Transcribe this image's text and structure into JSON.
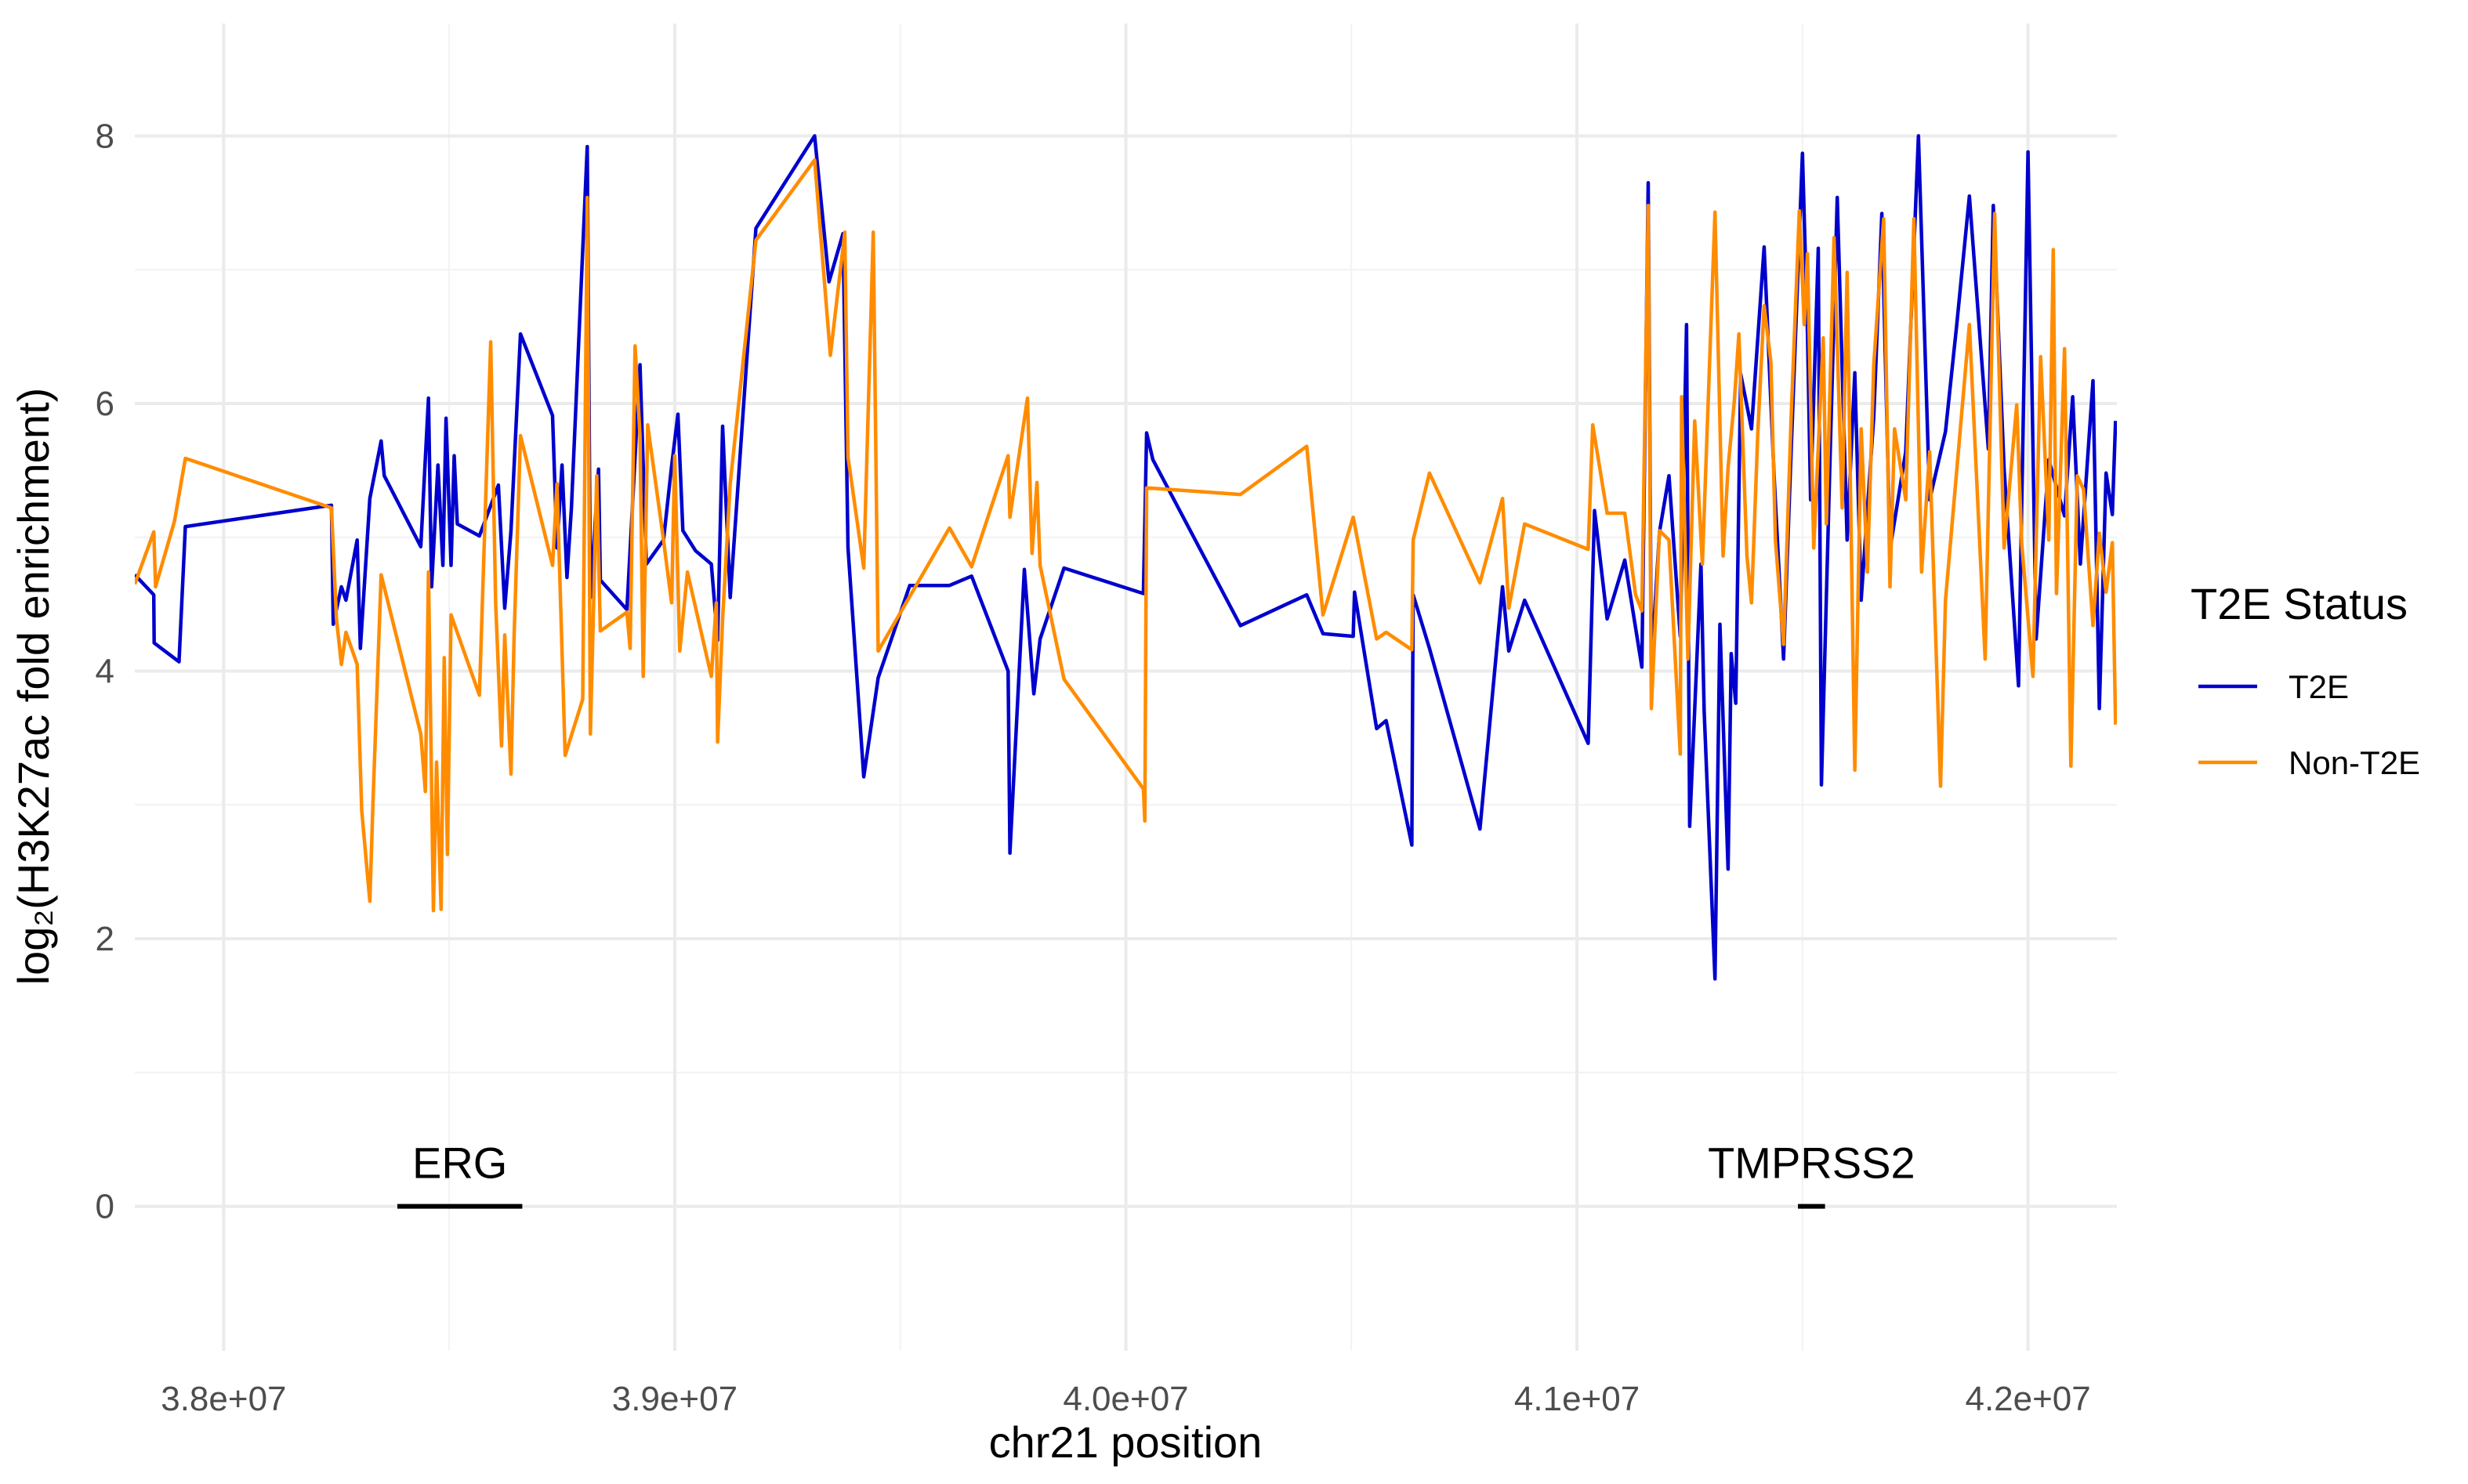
{
  "chart_data": {
    "type": "line",
    "x_label": "chr21 position",
    "y_label": "log₂(H3K27ac fold enrichment)",
    "legend_title": "T2E Status",
    "legend_position": "right",
    "grid": true,
    "xlim": [
      37803000,
      42197000
    ],
    "ylim": [
      -1.08,
      8.84
    ],
    "xticks": [
      {
        "value": 38000000,
        "label": "3.8e+07"
      },
      {
        "value": 39000000,
        "label": "3.9e+07"
      },
      {
        "value": 40000000,
        "label": "4.0e+07"
      },
      {
        "value": 41000000,
        "label": "4.1e+07"
      },
      {
        "value": 42000000,
        "label": "4.2e+07"
      }
    ],
    "yticks": [
      0,
      2,
      4,
      6,
      8
    ],
    "annotations": [
      {
        "label": "ERG",
        "start": 38385000,
        "end": 38662000,
        "y": 0
      },
      {
        "label": "TMPRSS2",
        "start": 41490000,
        "end": 41550000,
        "y": 0
      }
    ],
    "series": [
      {
        "name": "T2E",
        "color": "#0000cd",
        "x": [
          37803000,
          37845000,
          37846000,
          37901000,
          37915000,
          38239000,
          38243000,
          38261000,
          38271000,
          38296000,
          38303000,
          38324000,
          38349000,
          38356000,
          38437000,
          38454000,
          38461000,
          38475000,
          38486000,
          38493000,
          38504000,
          38511000,
          38518000,
          38567000,
          38609000,
          38623000,
          38637000,
          38658000,
          38729000,
          38739000,
          38750000,
          38761000,
          38771000,
          38806000,
          38813000,
          38831000,
          38835000,
          38894000,
          38923000,
          38937000,
          38975000,
          38993000,
          39007000,
          39018000,
          39046000,
          39081000,
          39095000,
          39106000,
          39123000,
          39180000,
          39310000,
          39342000,
          39373000,
          39384000,
          39419000,
          39451000,
          39521000,
          39609000,
          39658000,
          39739000,
          39743000,
          39775000,
          39796000,
          39810000,
          39863000,
          40039000,
          40046000,
          40060000,
          40254000,
          40401000,
          40437000,
          40504000,
          40507000,
          40556000,
          40577000,
          40634000,
          40637000,
          40673000,
          40785000,
          40835000,
          40849000,
          40884000,
          41025000,
          41039000,
          41067000,
          41106000,
          41144000,
          41158000,
          41165000,
          41183000,
          41204000,
          41229000,
          41243000,
          41250000,
          41275000,
          41282000,
          41306000,
          41317000,
          41335000,
          41342000,
          41352000,
          41363000,
          41387000,
          41415000,
          41437000,
          41458000,
          41475000,
          41500000,
          41511000,
          41518000,
          41535000,
          41542000,
          41560000,
          41577000,
          41599000,
          41616000,
          41630000,
          41658000,
          41676000,
          41694000,
          41729000,
          41757000,
          41782000,
          41817000,
          41842000,
          41870000,
          41912000,
          41923000,
          41947000,
          41979000,
          42000000,
          42018000,
          42046000,
          42081000,
          42099000,
          42116000,
          42144000,
          42158000,
          42173000,
          42187000,
          42194000
        ],
        "values": [
          4.72,
          4.57,
          4.21,
          4.07,
          5.08,
          5.24,
          4.35,
          4.63,
          4.53,
          4.98,
          4.17,
          5.29,
          5.72,
          5.46,
          4.93,
          6.04,
          4.63,
          5.54,
          4.79,
          5.89,
          4.79,
          5.61,
          5.1,
          5.01,
          5.39,
          4.47,
          5.05,
          6.52,
          5.91,
          4.92,
          5.54,
          4.7,
          5.22,
          7.92,
          4.55,
          5.51,
          4.68,
          4.46,
          6.29,
          4.8,
          4.98,
          5.53,
          5.92,
          5.05,
          4.9,
          4.8,
          4.23,
          5.83,
          4.55,
          7.31,
          8.0,
          6.91,
          7.27,
          4.92,
          3.21,
          3.95,
          4.64,
          4.64,
          4.71,
          4.0,
          2.64,
          4.76,
          3.83,
          4.24,
          4.77,
          4.58,
          5.78,
          5.58,
          4.34,
          4.57,
          4.28,
          4.26,
          4.59,
          3.57,
          3.63,
          2.7,
          4.57,
          4.17,
          2.82,
          4.63,
          4.15,
          4.53,
          3.46,
          5.2,
          4.39,
          4.83,
          4.03,
          7.65,
          4.03,
          5.04,
          5.46,
          4.26,
          6.59,
          2.84,
          4.8,
          3.7,
          1.7,
          4.35,
          2.52,
          4.13,
          3.76,
          6.22,
          5.81,
          7.17,
          5.46,
          4.09,
          5.65,
          7.87,
          6.53,
          5.28,
          7.16,
          3.15,
          5.46,
          7.54,
          4.98,
          6.23,
          4.53,
          5.9,
          7.42,
          4.91,
          5.64,
          8.0,
          5.28,
          5.79,
          6.59,
          7.55,
          5.66,
          7.48,
          5.51,
          3.89,
          7.88,
          4.24,
          5.58,
          5.16,
          6.05,
          4.8,
          6.17,
          3.72,
          5.48,
          5.17,
          5.87
        ]
      },
      {
        "name": "Non-T2E",
        "color": "#ff8c00",
        "x": [
          37803000,
          37845000,
          37849000,
          37891000,
          37915000,
          38239000,
          38250000,
          38261000,
          38271000,
          38296000,
          38306000,
          38324000,
          38331000,
          38349000,
          38437000,
          38447000,
          38454000,
          38465000,
          38472000,
          38482000,
          38489000,
          38496000,
          38504000,
          38567000,
          38592000,
          38603000,
          38616000,
          38623000,
          38637000,
          38644000,
          38658000,
          38729000,
          38739000,
          38757000,
          38796000,
          38806000,
          38813000,
          38827000,
          38835000,
          38894000,
          38901000,
          38912000,
          38923000,
          38930000,
          38940000,
          38975000,
          38993000,
          39000000,
          39011000,
          39028000,
          39081000,
          39092000,
          39095000,
          39106000,
          39123000,
          39180000,
          39310000,
          39345000,
          39377000,
          39384000,
          39419000,
          39440000,
          39451000,
          39609000,
          39658000,
          39739000,
          39743000,
          39782000,
          39792000,
          39803000,
          39810000,
          39863000,
          40039000,
          40042000,
          40046000,
          40254000,
          40401000,
          40437000,
          40504000,
          40556000,
          40577000,
          40634000,
          40637000,
          40673000,
          40785000,
          40835000,
          40849000,
          40884000,
          41025000,
          41035000,
          41067000,
          41106000,
          41130000,
          41144000,
          41158000,
          41165000,
          41183000,
          41204000,
          41229000,
          41232000,
          41246000,
          41261000,
          41278000,
          41306000,
          41324000,
          41335000,
          41349000,
          41359000,
          41377000,
          41387000,
          41401000,
          41415000,
          41430000,
          41440000,
          41458000,
          41475000,
          41493000,
          41504000,
          41511000,
          41525000,
          41546000,
          41553000,
          41570000,
          41588000,
          41599000,
          41616000,
          41630000,
          41644000,
          41658000,
          41680000,
          41694000,
          41704000,
          41729000,
          41747000,
          41764000,
          41782000,
          41806000,
          41817000,
          41870000,
          41905000,
          41926000,
          41947000,
          41975000,
          41986000,
          42011000,
          42028000,
          42046000,
          42056000,
          42063000,
          42081000,
          42095000,
          42109000,
          42123000,
          42144000,
          42158000,
          42173000,
          42187000,
          42194000
        ],
        "values": [
          4.65,
          5.04,
          4.63,
          5.12,
          5.59,
          5.22,
          4.39,
          4.05,
          4.29,
          4.05,
          2.96,
          2.28,
          3.02,
          4.72,
          3.53,
          3.1,
          4.74,
          2.21,
          3.32,
          2.22,
          4.1,
          2.63,
          4.42,
          3.82,
          6.46,
          4.51,
          3.44,
          4.27,
          3.23,
          4.27,
          5.76,
          4.79,
          5.4,
          3.37,
          3.79,
          7.54,
          3.53,
          5.46,
          4.3,
          4.44,
          4.17,
          6.43,
          5.76,
          3.96,
          5.84,
          4.98,
          4.51,
          5.61,
          4.15,
          4.74,
          3.96,
          4.51,
          3.47,
          4.39,
          5.4,
          7.22,
          7.82,
          6.36,
          7.28,
          5.6,
          4.77,
          7.28,
          4.15,
          5.07,
          4.78,
          5.61,
          5.15,
          6.04,
          4.88,
          5.41,
          4.79,
          3.94,
          3.12,
          2.88,
          5.37,
          5.32,
          5.68,
          4.42,
          5.15,
          4.24,
          4.29,
          4.16,
          4.98,
          5.48,
          4.66,
          5.29,
          4.47,
          5.1,
          4.91,
          5.84,
          5.18,
          5.18,
          4.57,
          4.45,
          7.48,
          3.72,
          5.05,
          4.98,
          3.38,
          6.05,
          4.09,
          5.87,
          4.8,
          7.43,
          4.86,
          5.52,
          6.02,
          6.52,
          4.86,
          4.51,
          5.79,
          6.73,
          6.31,
          4.98,
          4.2,
          5.9,
          7.44,
          6.59,
          7.12,
          4.92,
          6.49,
          5.1,
          7.24,
          5.22,
          6.98,
          3.26,
          5.81,
          4.74,
          6.29,
          7.38,
          4.63,
          5.81,
          5.28,
          7.38,
          4.74,
          5.64,
          3.14,
          4.53,
          6.59,
          4.09,
          7.42,
          4.92,
          5.99,
          4.95,
          3.96,
          6.35,
          4.98,
          7.15,
          4.58,
          6.41,
          3.29,
          5.46,
          5.36,
          4.34,
          5.03,
          4.59,
          4.96,
          3.6
        ]
      }
    ]
  }
}
